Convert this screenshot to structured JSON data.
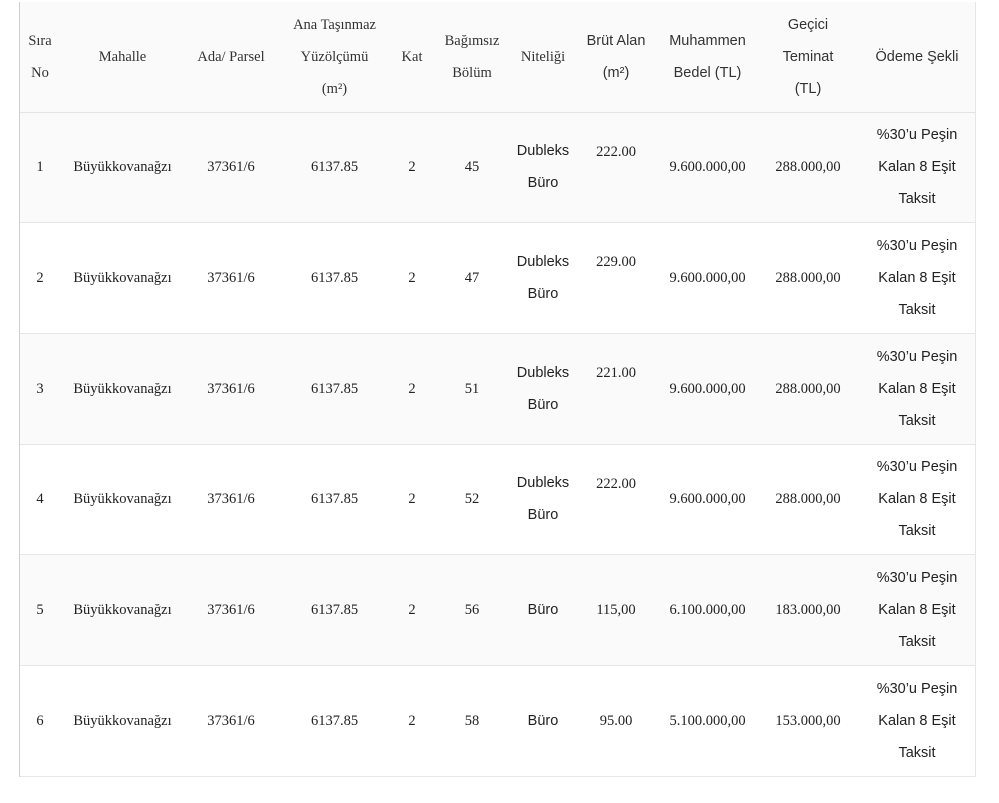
{
  "table": {
    "headers": {
      "sira": [
        "Sıra",
        "No"
      ],
      "mahalle": [
        "Mahalle"
      ],
      "ada": [
        "Ada/ Parsel"
      ],
      "yuzolcumu": [
        "Ana Taşınmaz",
        "Yüzölçümü",
        "(m²)"
      ],
      "kat": [
        "Kat"
      ],
      "bagimsiz": [
        "Bağımsız",
        "Bölüm"
      ],
      "niteligi": [
        "Niteliği"
      ],
      "brut": [
        "Brüt Alan",
        "(m²)"
      ],
      "muhammen": [
        "Muhammen",
        "Bedel (TL)"
      ],
      "teminat": [
        "Geçici",
        "Teminat",
        "(TL)"
      ],
      "odeme": [
        "Ödeme Şekli"
      ]
    },
    "rows": [
      {
        "sira": "1",
        "mahalle": "Büyükkovanağzı",
        "ada": "37361/6",
        "yuzolcumu": "6137.85",
        "kat": "2",
        "bagimsiz": "45",
        "niteligi": [
          "Dubleks",
          "Büro"
        ],
        "brut": "222.00",
        "muhammen": "9.600.000,00",
        "teminat": "288.000,00",
        "odeme": [
          "%30’u Peşin",
          "Kalan 8 Eşit",
          "Taksit"
        ]
      },
      {
        "sira": "2",
        "mahalle": "Büyükkovanağzı",
        "ada": "37361/6",
        "yuzolcumu": "6137.85",
        "kat": "2",
        "bagimsiz": "47",
        "niteligi": [
          "Dubleks",
          "Büro"
        ],
        "brut": "229.00",
        "muhammen": "9.600.000,00",
        "teminat": "288.000,00",
        "odeme": [
          "%30’u Peşin",
          "Kalan 8 Eşit",
          "Taksit"
        ]
      },
      {
        "sira": "3",
        "mahalle": "Büyükkovanağzı",
        "ada": "37361/6",
        "yuzolcumu": "6137.85",
        "kat": "2",
        "bagimsiz": "51",
        "niteligi": [
          "Dubleks",
          "Büro"
        ],
        "brut": "221.00",
        "muhammen": "9.600.000,00",
        "teminat": "288.000,00",
        "odeme": [
          "%30’u Peşin",
          "Kalan 8 Eşit",
          "Taksit"
        ]
      },
      {
        "sira": "4",
        "mahalle": "Büyükkovanağzı",
        "ada": "37361/6",
        "yuzolcumu": "6137.85",
        "kat": "2",
        "bagimsiz": "52",
        "niteligi": [
          "Dubleks",
          "Büro"
        ],
        "brut": "222.00",
        "muhammen": "9.600.000,00",
        "teminat": "288.000,00",
        "odeme": [
          "%30’u Peşin",
          "Kalan 8 Eşit",
          "Taksit"
        ]
      },
      {
        "sira": "5",
        "mahalle": "Büyükkovanağzı",
        "ada": "37361/6",
        "yuzolcumu": "6137.85",
        "kat": "2",
        "bagimsiz": "56",
        "niteligi": [
          "Büro"
        ],
        "brut": "115,00",
        "muhammen": "6.100.000,00",
        "teminat": "183.000,00",
        "odeme": [
          "%30’u Peşin",
          "Kalan 8 Eşit",
          "Taksit"
        ]
      },
      {
        "sira": "6",
        "mahalle": "Büyükkovanağzı",
        "ada": "37361/6",
        "yuzolcumu": "6137.85",
        "kat": "2",
        "bagimsiz": "58",
        "niteligi": [
          "Büro"
        ],
        "brut": "95.00",
        "muhammen": "5.100.000,00",
        "teminat": "153.000,00",
        "odeme": [
          "%30’u Peşin",
          "Kalan 8 Eşit",
          "Taksit"
        ]
      }
    ]
  }
}
